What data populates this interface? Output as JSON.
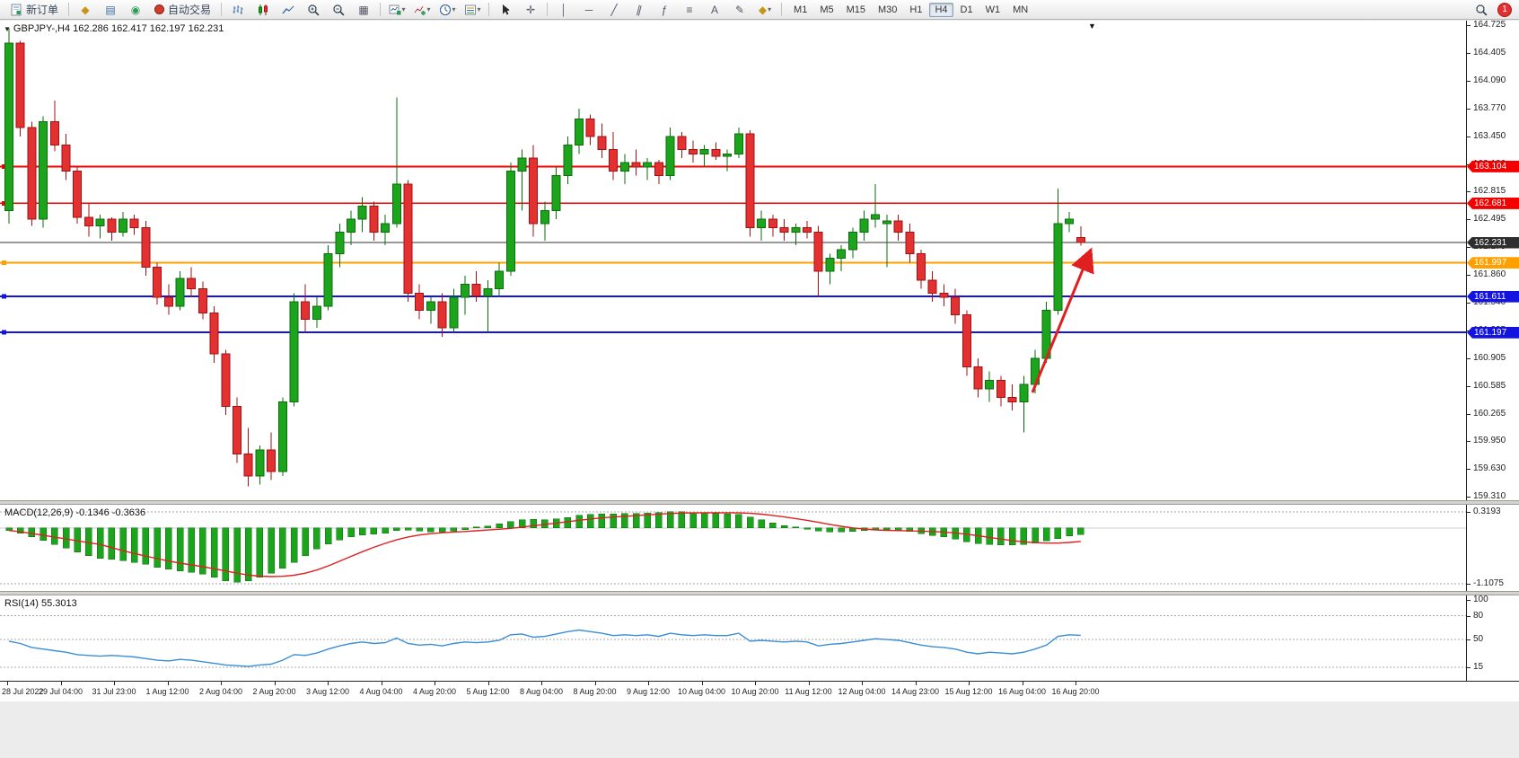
{
  "toolbar": {
    "new_order_label": "新订单",
    "auto_trading_label": "自动交易",
    "timeframes": [
      "M1",
      "M5",
      "M15",
      "M30",
      "H1",
      "H4",
      "D1",
      "W1",
      "MN"
    ],
    "active_timeframe": "H4",
    "badge": "1"
  },
  "icons": {
    "market_watch": "◆",
    "navigator": "▤",
    "refresh": "◉",
    "tile": "▦",
    "crosshair": "✛",
    "vertical_line": "│",
    "horizontal_line": "─",
    "trendline": "╱",
    "channel": "∥",
    "fibonacci": "ƒ",
    "cycle_lines": "≡",
    "text": "A",
    "label": "✎",
    "shapes": "◆",
    "chevron": "▾",
    "collapse": "▼",
    "scroll_marker": "▼"
  },
  "chart": {
    "title": "GBPJPY-,H4  162.286 162.417 162.197 162.231",
    "symbol": "GBPJPY-",
    "period": "H4",
    "open": "162.286",
    "high": "162.417",
    "low": "162.197",
    "close": "162.231"
  },
  "indicators": {
    "macd_label": "MACD(12,26,9) -0.1346 -0.3636",
    "rsi_label": "RSI(14) 55.3013",
    "macd_axis_ticks": [
      {
        "label": "0.3193",
        "value": 0.3193
      },
      {
        "label": "-1.1075",
        "value": -1.1075
      }
    ],
    "rsi_axis_ticks": [
      {
        "label": "100",
        "value": 100
      },
      {
        "label": "80",
        "value": 80
      },
      {
        "label": "50",
        "value": 50
      },
      {
        "label": "15",
        "value": 15
      }
    ]
  },
  "price_axis": {
    "ticks": [
      "164.725",
      "164.405",
      "164.090",
      "163.770",
      "163.450",
      "163.130",
      "162.815",
      "162.495",
      "162.175",
      "161.860",
      "161.540",
      "161.225",
      "160.905",
      "160.585",
      "160.265",
      "159.950",
      "159.630",
      "159.310"
    ]
  },
  "time_axis": {
    "labels": [
      "28 Jul 2022",
      "29 Jul 04:00",
      "31 Jul 23:00",
      "1 Aug 12:00",
      "2 Aug 04:00",
      "2 Aug 20:00",
      "3 Aug 12:00",
      "4 Aug 04:00",
      "4 Aug 20:00",
      "5 Aug 12:00",
      "8 Aug 04:00",
      "8 Aug 20:00",
      "9 Aug 12:00",
      "10 Aug 04:00",
      "10 Aug 20:00",
      "11 Aug 12:00",
      "12 Aug 04:00",
      "14 Aug 23:00",
      "15 Aug 12:00",
      "16 Aug 04:00",
      "16 Aug 20:00"
    ]
  },
  "chart_data": [
    {
      "type": "candlestick",
      "symbol": "GBPJPY-",
      "timeframe": "H4",
      "ylim": [
        159.27,
        164.78
      ],
      "x0": 10,
      "dx": 12.7,
      "up_color": "#1CA51C",
      "up_border": "#0B6E0B",
      "down_color": "#E33030",
      "down_border": "#A31212",
      "candles": [
        [
          162.6,
          164.69,
          162.45,
          164.52
        ],
        [
          164.52,
          164.55,
          163.45,
          163.55
        ],
        [
          163.55,
          163.62,
          162.42,
          162.5
        ],
        [
          162.5,
          163.68,
          162.4,
          163.62
        ],
        [
          163.62,
          163.86,
          163.28,
          163.35
        ],
        [
          163.35,
          163.48,
          162.95,
          163.05
        ],
        [
          163.05,
          163.1,
          162.45,
          162.52
        ],
        [
          162.52,
          162.68,
          162.3,
          162.42
        ],
        [
          162.42,
          162.55,
          162.28,
          162.5
        ],
        [
          162.5,
          162.52,
          162.25,
          162.35
        ],
        [
          162.35,
          162.58,
          162.3,
          162.5
        ],
        [
          162.5,
          162.55,
          162.32,
          162.4
        ],
        [
          162.4,
          162.48,
          161.85,
          161.95
        ],
        [
          161.95,
          162.0,
          161.52,
          161.6
        ],
        [
          161.6,
          161.75,
          161.4,
          161.5
        ],
        [
          161.5,
          161.9,
          161.45,
          161.82
        ],
        [
          161.82,
          161.95,
          161.6,
          161.7
        ],
        [
          161.7,
          161.78,
          161.35,
          161.42
        ],
        [
          161.42,
          161.5,
          160.85,
          160.95
        ],
        [
          160.95,
          161.0,
          160.25,
          160.35
        ],
        [
          160.35,
          160.45,
          159.7,
          159.8
        ],
        [
          159.8,
          160.1,
          159.43,
          159.55
        ],
        [
          159.55,
          159.9,
          159.45,
          159.85
        ],
        [
          159.85,
          160.05,
          159.5,
          159.6
        ],
        [
          159.6,
          160.45,
          159.55,
          160.4
        ],
        [
          160.4,
          161.65,
          160.35,
          161.55
        ],
        [
          161.55,
          161.75,
          161.2,
          161.35
        ],
        [
          161.35,
          161.6,
          161.25,
          161.5
        ],
        [
          161.5,
          162.2,
          161.45,
          162.1
        ],
        [
          162.1,
          162.45,
          161.95,
          162.35
        ],
        [
          162.35,
          162.6,
          162.2,
          162.5
        ],
        [
          162.5,
          162.75,
          162.35,
          162.65
        ],
        [
          162.65,
          162.7,
          162.25,
          162.35
        ],
        [
          162.35,
          162.55,
          162.2,
          162.45
        ],
        [
          162.45,
          163.9,
          162.4,
          162.9
        ],
        [
          162.9,
          162.95,
          161.55,
          161.65
        ],
        [
          161.65,
          161.75,
          161.35,
          161.45
        ],
        [
          161.45,
          161.6,
          161.3,
          161.55
        ],
        [
          161.55,
          161.65,
          161.15,
          161.25
        ],
        [
          161.25,
          161.7,
          161.2,
          161.6
        ],
        [
          161.6,
          161.85,
          161.4,
          161.75
        ],
        [
          161.75,
          161.9,
          161.55,
          161.62
        ],
        [
          161.62,
          161.8,
          161.2,
          161.7
        ],
        [
          161.7,
          162.0,
          161.6,
          161.9
        ],
        [
          161.9,
          163.15,
          161.85,
          163.05
        ],
        [
          163.05,
          163.3,
          162.6,
          163.2
        ],
        [
          163.2,
          163.35,
          162.3,
          162.45
        ],
        [
          162.45,
          162.7,
          162.25,
          162.6
        ],
        [
          162.6,
          163.1,
          162.5,
          163.0
        ],
        [
          163.0,
          163.45,
          162.9,
          163.35
        ],
        [
          163.35,
          163.77,
          163.25,
          163.65
        ],
        [
          163.65,
          163.7,
          163.35,
          163.45
        ],
        [
          163.45,
          163.6,
          163.2,
          163.3
        ],
        [
          163.3,
          163.5,
          162.95,
          163.05
        ],
        [
          163.05,
          163.25,
          162.9,
          163.15
        ],
        [
          163.15,
          163.3,
          163.0,
          163.1
        ],
        [
          163.1,
          163.2,
          162.95,
          163.15
        ],
        [
          163.15,
          163.18,
          162.9,
          163.0
        ],
        [
          163.0,
          163.55,
          162.95,
          163.45
        ],
        [
          163.45,
          163.5,
          163.2,
          163.3
        ],
        [
          163.3,
          163.4,
          163.15,
          163.25
        ],
        [
          163.25,
          163.35,
          163.1,
          163.3
        ],
        [
          163.3,
          163.38,
          163.18,
          163.22
        ],
        [
          163.22,
          163.3,
          163.05,
          163.25
        ],
        [
          163.25,
          163.55,
          163.2,
          163.48
        ],
        [
          163.48,
          163.52,
          162.3,
          162.4
        ],
        [
          162.4,
          162.6,
          162.25,
          162.5
        ],
        [
          162.5,
          162.55,
          162.3,
          162.4
        ],
        [
          162.4,
          162.5,
          162.25,
          162.35
        ],
        [
          162.35,
          162.45,
          162.2,
          162.4
        ],
        [
          162.4,
          162.48,
          162.28,
          162.35
        ],
        [
          162.35,
          162.42,
          161.6,
          161.9
        ],
        [
          161.9,
          162.1,
          161.75,
          162.05
        ],
        [
          162.05,
          162.2,
          161.9,
          162.15
        ],
        [
          162.15,
          162.4,
          162.05,
          162.35
        ],
        [
          162.35,
          162.6,
          162.25,
          162.5
        ],
        [
          162.5,
          162.9,
          162.4,
          162.55
        ],
        [
          162.45,
          162.55,
          161.95,
          162.48
        ],
        [
          162.48,
          162.55,
          162.25,
          162.35
        ],
        [
          162.35,
          162.45,
          162.0,
          162.1
        ],
        [
          162.1,
          162.15,
          161.7,
          161.8
        ],
        [
          161.8,
          161.9,
          161.55,
          161.65
        ],
        [
          161.65,
          161.75,
          161.5,
          161.6
        ],
        [
          161.6,
          161.7,
          161.3,
          161.4
        ],
        [
          161.4,
          161.45,
          160.7,
          160.8
        ],
        [
          160.8,
          160.9,
          160.45,
          160.55
        ],
        [
          160.55,
          160.75,
          160.4,
          160.65
        ],
        [
          160.65,
          160.7,
          160.35,
          160.45
        ],
        [
          160.45,
          160.6,
          160.3,
          160.4
        ],
        [
          160.4,
          160.7,
          160.05,
          160.6
        ],
        [
          160.6,
          161.0,
          160.5,
          160.9
        ],
        [
          160.9,
          161.55,
          160.85,
          161.45
        ],
        [
          161.45,
          162.85,
          161.4,
          162.45
        ],
        [
          162.45,
          162.58,
          162.35,
          162.5
        ],
        [
          162.286,
          162.417,
          162.197,
          162.231
        ]
      ],
      "levels": [
        {
          "label": "163.104",
          "value": 163.104,
          "color": "#F50000",
          "width": 2
        },
        {
          "label": "162.681",
          "value": 162.681,
          "color": "#F50000",
          "width": 1.4
        },
        {
          "label": "161.997",
          "value": 161.997,
          "color": "#FFA000",
          "width": 2
        },
        {
          "label": "161.611",
          "value": 161.611,
          "color": "#1414E0",
          "width": 2
        },
        {
          "label": "161.197",
          "value": 161.197,
          "color": "#1414E0",
          "width": 2
        }
      ],
      "current_price": {
        "label": "162.231",
        "value": 162.231,
        "color": "#333333"
      },
      "annotation_arrow": {
        "from": [
          1150,
          414
        ],
        "to": [
          1214,
          258
        ],
        "color": "#E02020"
      }
    },
    {
      "type": "bar",
      "name": "MACD",
      "params": [
        12,
        26,
        9
      ],
      "display": "-0.1346 -0.3636",
      "ylim": [
        -1.1075,
        0.3193
      ],
      "bar_color": "#1CA51C",
      "signal_color": "#E02020",
      "values": [
        -0.05,
        -0.1,
        -0.18,
        -0.25,
        -0.33,
        -0.4,
        -0.48,
        -0.55,
        -0.6,
        -0.62,
        -0.65,
        -0.68,
        -0.72,
        -0.78,
        -0.82,
        -0.85,
        -0.88,
        -0.92,
        -0.98,
        -1.05,
        -1.08,
        -1.05,
        -0.98,
        -0.9,
        -0.8,
        -0.68,
        -0.55,
        -0.42,
        -0.32,
        -0.24,
        -0.18,
        -0.14,
        -0.12,
        -0.1,
        -0.05,
        -0.04,
        -0.06,
        -0.08,
        -0.08,
        -0.06,
        -0.03,
        0.0,
        0.04,
        0.08,
        0.13,
        0.16,
        0.17,
        0.16,
        0.18,
        0.21,
        0.25,
        0.27,
        0.28,
        0.28,
        0.29,
        0.29,
        0.3,
        0.31,
        0.32,
        0.32,
        0.31,
        0.3,
        0.29,
        0.28,
        0.27,
        0.22,
        0.16,
        0.1,
        0.05,
        0.01,
        -0.02,
        -0.06,
        -0.08,
        -0.08,
        -0.07,
        -0.05,
        -0.03,
        -0.03,
        -0.04,
        -0.07,
        -0.11,
        -0.15,
        -0.18,
        -0.22,
        -0.27,
        -0.31,
        -0.33,
        -0.34,
        -0.34,
        -0.33,
        -0.3,
        -0.26,
        -0.21,
        -0.16,
        -0.1346
      ]
    },
    {
      "type": "line",
      "name": "RSI",
      "params": [
        14
      ],
      "display": "55.3013",
      "ylim": [
        0,
        100
      ],
      "levels": [
        80,
        50,
        15
      ],
      "line_color": "#3A8DD6",
      "values": [
        48,
        45,
        40,
        38,
        36,
        34,
        31,
        30,
        29,
        30,
        29,
        28,
        26,
        24,
        23,
        25,
        24,
        22,
        20,
        18,
        17,
        16,
        18,
        19,
        24,
        31,
        30,
        33,
        38,
        42,
        45,
        47,
        45,
        46,
        52,
        45,
        43,
        44,
        42,
        45,
        47,
        46,
        47,
        49,
        56,
        57,
        53,
        54,
        57,
        60,
        62,
        60,
        58,
        55,
        56,
        55,
        56,
        54,
        58,
        56,
        55,
        56,
        55,
        55,
        58,
        48,
        49,
        48,
        47,
        48,
        47,
        42,
        44,
        45,
        47,
        49,
        51,
        50,
        49,
        46,
        43,
        41,
        40,
        38,
        34,
        32,
        34,
        33,
        32,
        34,
        38,
        43,
        54,
        56,
        55.3
      ]
    }
  ]
}
